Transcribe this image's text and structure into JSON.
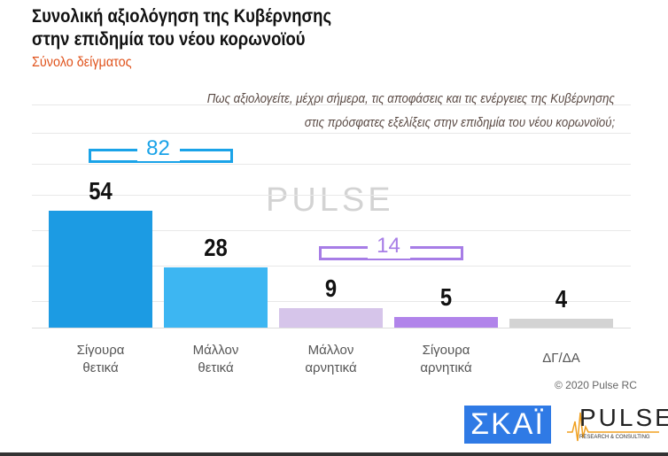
{
  "header": {
    "title_line1": "Συνολική αξιολόγηση της Κυβέρνησης",
    "title_line2": "στην επιδημία του νέου κορωνοϊού",
    "subtitle": "Σύνολο δείγματος"
  },
  "question": {
    "line1": "Πως αξιολογείτε, μέχρι σήμερα, τις αποφάσεις και τις ενέργειες της Κυβέρνησης",
    "line2": "στις πρόσφατες εξελίξεις στην επιδημία του νέου κορωνοϊού;"
  },
  "chart_data": {
    "type": "bar",
    "categories": [
      "Σίγουρα θετικά",
      "Μάλλον θετικά",
      "Μάλλον αρνητικά",
      "Σίγουρα αρνητικά",
      "ΔΓ/ΔΑ"
    ],
    "category_lines": [
      [
        "Σίγουρα",
        "θετικά"
      ],
      [
        "Μάλλον",
        "θετικά"
      ],
      [
        "Μάλλον",
        "αρνητικά"
      ],
      [
        "Σίγουρα",
        "αρνητικά"
      ],
      [
        "ΔΓ/ΔΑ",
        ""
      ]
    ],
    "values": [
      54,
      28,
      9,
      5,
      4
    ],
    "colors": [
      "#1c9be3",
      "#3db6f2",
      "#d6c5ea",
      "#b184ea",
      "#d3d3d3"
    ],
    "groups": [
      {
        "label": "82",
        "value": 82,
        "color": "#1aa3e8"
      },
      {
        "label": "14",
        "value": 14,
        "color": "#a77de6"
      }
    ],
    "ylim": [
      0,
      60
    ]
  },
  "footer": {
    "copyright": "© 2020 Pulse RC",
    "logo_skai": "ΣΚΑΪ",
    "logo_pulse": "PULSE",
    "logo_pulse_sub": "RESEARCH & CONSULTING"
  }
}
